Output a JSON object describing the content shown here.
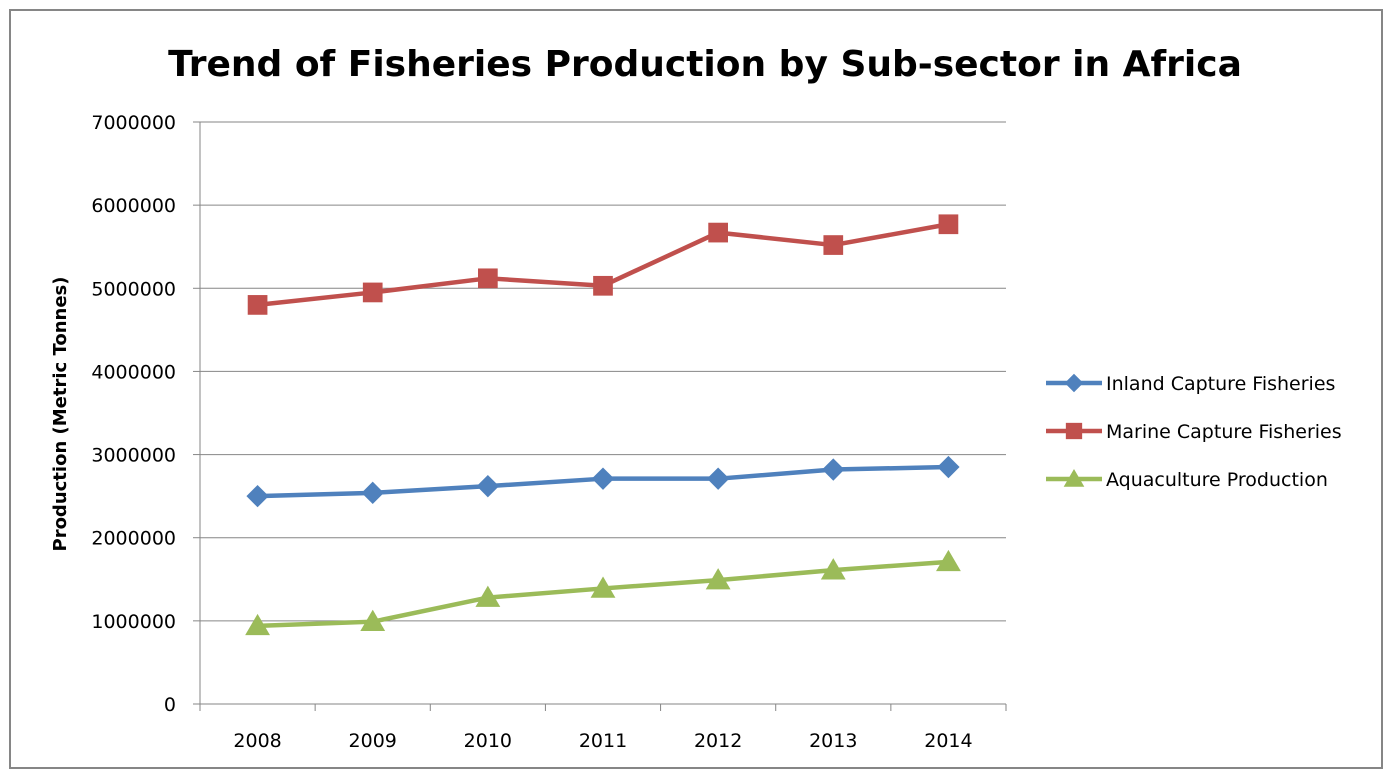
{
  "chart_data": {
    "type": "line",
    "title": "Trend of Fisheries Production by Sub-sector in Africa",
    "xlabel": "",
    "ylabel": "Production (Metric Tonnes)",
    "categories": [
      "2008",
      "2009",
      "2010",
      "2011",
      "2012",
      "2013",
      "2014"
    ],
    "ylim": [
      0,
      7000000
    ],
    "yticks": [
      "0",
      "1000000",
      "2000000",
      "3000000",
      "4000000",
      "5000000",
      "6000000",
      "7000000"
    ],
    "grid": true,
    "legend_position": "right",
    "series": [
      {
        "name": "Inland Capture Fisheries",
        "color": "#4f81bd",
        "marker": "diamond",
        "values": [
          2500000,
          2540000,
          2620000,
          2710000,
          2710000,
          2820000,
          2850000
        ]
      },
      {
        "name": "Marine Capture Fisheries",
        "color": "#c0504d",
        "marker": "square",
        "values": [
          4800000,
          4950000,
          5120000,
          5030000,
          5670000,
          5520000,
          5770000
        ]
      },
      {
        "name": "Aquaculture Production",
        "color": "#9bbb59",
        "marker": "triangle",
        "values": [
          940000,
          990000,
          1280000,
          1390000,
          1490000,
          1610000,
          1710000
        ]
      }
    ]
  }
}
